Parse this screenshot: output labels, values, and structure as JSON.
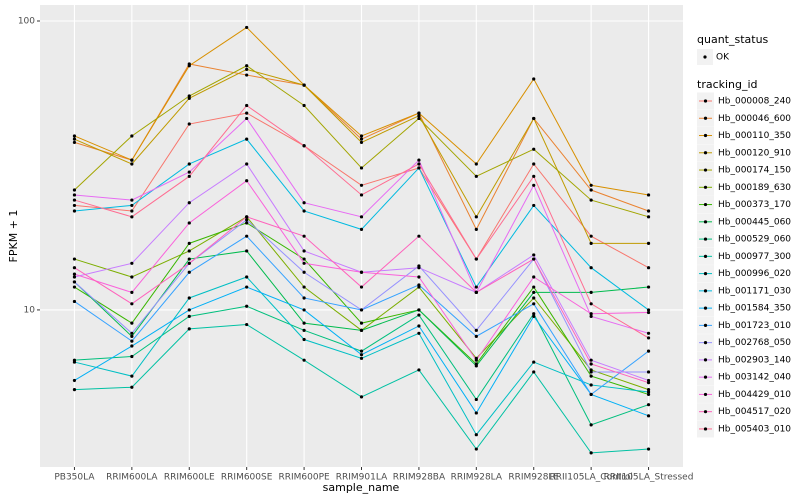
{
  "chart_data": {
    "type": "line",
    "log_scale": true,
    "grid": true,
    "x_label": "sample_name",
    "y_label": "FPKM + 1",
    "categories": [
      "PB350LA",
      "RRIM600LA",
      "RRIM600LE",
      "RRIM600SE",
      "RRIM600PE",
      "RRIM901LA",
      "RRIM928BA",
      "RRIM928LA",
      "RRIM928LE",
      "RRII105LA_Control",
      "RRII105LA_Stressed"
    ],
    "ylim": [
      2.86,
      113.6
    ],
    "yticks": [
      10,
      100
    ],
    "point_legend": {
      "title": "quant_status",
      "labels": [
        "OK"
      ]
    },
    "legend": {
      "title": "tracking_id",
      "position": "right"
    },
    "series": [
      {
        "name": "Hb_000008_240",
        "color": "#F8766D",
        "values": [
          23,
          22,
          44,
          48,
          37,
          27,
          31,
          15,
          32,
          18,
          14
        ]
      },
      {
        "name": "Hb_000046_600",
        "color": "#EA8331",
        "values": [
          38,
          33,
          71,
          65,
          60,
          39,
          48,
          19,
          46,
          26,
          22
        ]
      },
      {
        "name": "Hb_000110_350",
        "color": "#D89000",
        "values": [
          40,
          33,
          70,
          95,
          60,
          40,
          48,
          32,
          63,
          27,
          25
        ]
      },
      {
        "name": "Hb_000120_910",
        "color": "#C09B00",
        "values": [
          39,
          32,
          54,
          68,
          60,
          38,
          47,
          21,
          46,
          17,
          17
        ]
      },
      {
        "name": "Hb_000174_150",
        "color": "#A3A500",
        "values": [
          26,
          40,
          55,
          70,
          51,
          31,
          46,
          29,
          36,
          24,
          21
        ]
      },
      {
        "name": "Hb_000189_630",
        "color": "#7CAE00",
        "values": [
          15,
          13,
          16,
          21,
          12,
          8.5,
          12,
          6.8,
          11,
          6.2,
          5.3
        ]
      },
      {
        "name": "Hb_000373_170",
        "color": "#39B600",
        "values": [
          12,
          9,
          17,
          20,
          15,
          9,
          10,
          6.5,
          12,
          5.9,
          5.1
        ]
      },
      {
        "name": "Hb_000445_060",
        "color": "#00BB4E",
        "values": [
          12.5,
          8.1,
          15,
          16,
          9,
          8.5,
          10,
          6.4,
          11.5,
          11.5,
          12
        ]
      },
      {
        "name": "Hb_000529_060",
        "color": "#00BF7D",
        "values": [
          6.7,
          6.9,
          9.5,
          10.3,
          8.5,
          7.2,
          9.6,
          4.9,
          9.7,
          4.0,
          4.7
        ]
      },
      {
        "name": "Hb_000977_300",
        "color": "#00C1A3",
        "values": [
          5.3,
          5.4,
          8.6,
          8.9,
          6.7,
          5,
          6.2,
          3.3,
          6.1,
          3.2,
          3.3
        ]
      },
      {
        "name": "Hb_000996_020",
        "color": "#00BFC4",
        "values": [
          6.6,
          5.9,
          11,
          13,
          7.9,
          6.8,
          8.3,
          3.7,
          6.6,
          5.5,
          5.2
        ]
      },
      {
        "name": "Hb_001171_030",
        "color": "#00BAE0",
        "values": [
          22,
          23,
          32,
          39,
          22,
          19,
          31,
          12,
          23,
          14,
          10
        ]
      },
      {
        "name": "Hb_001584_350",
        "color": "#00B0F6",
        "values": [
          5.7,
          7.5,
          10,
          12,
          10,
          7,
          8.8,
          4.4,
          9.5,
          5.1,
          4.3
        ]
      },
      {
        "name": "Hb_001723_010",
        "color": "#35A2FF",
        "values": [
          10.7,
          7.8,
          13.5,
          18,
          11,
          10,
          12.2,
          8.1,
          10.5,
          5.1,
          7.2
        ]
      },
      {
        "name": "Hb_002768_050",
        "color": "#9590FF",
        "values": [
          12.5,
          8.3,
          14.5,
          20.5,
          13.5,
          10,
          14.2,
          8.5,
          15,
          6.1,
          6.1
        ]
      },
      {
        "name": "Hb_002903_140",
        "color": "#C77CFF",
        "values": [
          13,
          14.5,
          23.5,
          32,
          16,
          13.5,
          14,
          11.5,
          15.5,
          6.7,
          5.7
        ]
      },
      {
        "name": "Hb_003142_040",
        "color": "#E76BF3",
        "values": [
          25,
          24,
          30,
          46,
          23.5,
          21,
          33,
          11.5,
          27,
          9.5,
          8.3
        ]
      },
      {
        "name": "Hb_004429_010",
        "color": "#FA62DB",
        "values": [
          13.3,
          11.5,
          20,
          28,
          14.5,
          13.5,
          13,
          6.7,
          13,
          9.7,
          9.8
        ]
      },
      {
        "name": "Hb_004517_020",
        "color": "#FF62BC",
        "values": [
          14,
          10.5,
          14.5,
          21,
          18,
          12,
          18,
          11.5,
          15,
          6.5,
          5.6
        ]
      },
      {
        "name": "Hb_005403_010",
        "color": "#FF6C91",
        "values": [
          24,
          21,
          29,
          51,
          37,
          25,
          32,
          15,
          29,
          10.5,
          8
        ]
      }
    ]
  }
}
